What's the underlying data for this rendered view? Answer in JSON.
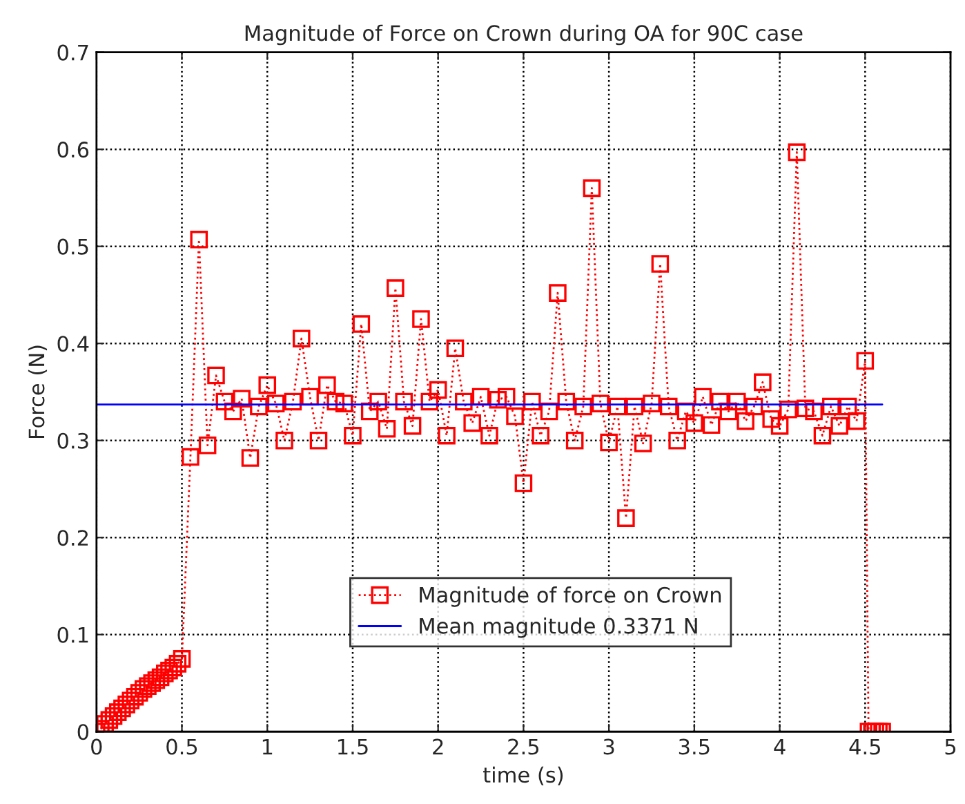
{
  "chart_data": {
    "type": "line",
    "title": "Magnitude of Force on Crown during OA for 90C case",
    "xlabel": "time (s)",
    "ylabel": "Force (N)",
    "xlim": [
      0,
      5
    ],
    "xticks": [
      0,
      0.5,
      1,
      1.5,
      2,
      2.5,
      3,
      3.5,
      4,
      4.5,
      5
    ],
    "ylim": [
      0,
      0.7
    ],
    "yticks": [
      0,
      0.1,
      0.2,
      0.3,
      0.4,
      0.5,
      0.6,
      0.7
    ],
    "grid": true,
    "legend": "bottom",
    "series": [
      {
        "name": "Magnitude of force on Crown",
        "color": "#ff0000",
        "marker": "square",
        "line_style": "dotted",
        "x": [
          0,
          0.025,
          0.05,
          0.075,
          0.1,
          0.125,
          0.15,
          0.175,
          0.2,
          0.225,
          0.25,
          0.275,
          0.3,
          0.325,
          0.35,
          0.375,
          0.4,
          0.425,
          0.45,
          0.475,
          0.5,
          0.55,
          0.6,
          0.65,
          0.7,
          0.75,
          0.8,
          0.85,
          0.9,
          0.95,
          1.0,
          1.05,
          1.1,
          1.15,
          1.2,
          1.25,
          1.3,
          1.35,
          1.4,
          1.45,
          1.5,
          1.55,
          1.6,
          1.65,
          1.7,
          1.75,
          1.8,
          1.85,
          1.9,
          1.95,
          2.0,
          2.05,
          2.1,
          2.15,
          2.2,
          2.25,
          2.3,
          2.35,
          2.4,
          2.45,
          2.5,
          2.55,
          2.6,
          2.65,
          2.7,
          2.75,
          2.8,
          2.85,
          2.9,
          2.95,
          3.0,
          3.05,
          3.1,
          3.15,
          3.2,
          3.25,
          3.3,
          3.35,
          3.4,
          3.45,
          3.5,
          3.55,
          3.6,
          3.65,
          3.7,
          3.75,
          3.8,
          3.85,
          3.9,
          3.95,
          4.0,
          4.05,
          4.1,
          4.15,
          4.2,
          4.25,
          4.3,
          4.35,
          4.4,
          4.45,
          4.5,
          4.52,
          4.54,
          4.56,
          4.58,
          4.6
        ],
        "values": [
          0,
          0.003,
          0.008,
          0.012,
          0.016,
          0.02,
          0.024,
          0.028,
          0.032,
          0.036,
          0.04,
          0.044,
          0.047,
          0.05,
          0.053,
          0.056,
          0.06,
          0.063,
          0.066,
          0.07,
          0.075,
          0.283,
          0.507,
          0.295,
          0.367,
          0.34,
          0.33,
          0.343,
          0.282,
          0.335,
          0.357,
          0.338,
          0.3,
          0.34,
          0.405,
          0.345,
          0.3,
          0.357,
          0.34,
          0.338,
          0.305,
          0.42,
          0.33,
          0.34,
          0.312,
          0.457,
          0.34,
          0.315,
          0.425,
          0.34,
          0.352,
          0.305,
          0.395,
          0.34,
          0.318,
          0.345,
          0.305,
          0.342,
          0.345,
          0.325,
          0.256,
          0.34,
          0.305,
          0.33,
          0.452,
          0.34,
          0.3,
          0.335,
          0.56,
          0.338,
          0.298,
          0.335,
          0.22,
          0.335,
          0.297,
          0.338,
          0.482,
          0.335,
          0.3,
          0.33,
          0.318,
          0.345,
          0.316,
          0.34,
          0.33,
          0.34,
          0.32,
          0.335,
          0.36,
          0.322,
          0.315,
          0.332,
          0.597,
          0.333,
          0.33,
          0.305,
          0.335,
          0.315,
          0.335,
          0.32,
          0.382,
          0,
          0,
          0,
          0,
          0
        ]
      },
      {
        "name": "Mean magnitude 0.3371 N",
        "color": "#0000ff",
        "marker": "none",
        "line_style": "solid",
        "x": [
          0,
          4.6
        ],
        "values": [
          0.3371,
          0.3371
        ]
      }
    ]
  }
}
